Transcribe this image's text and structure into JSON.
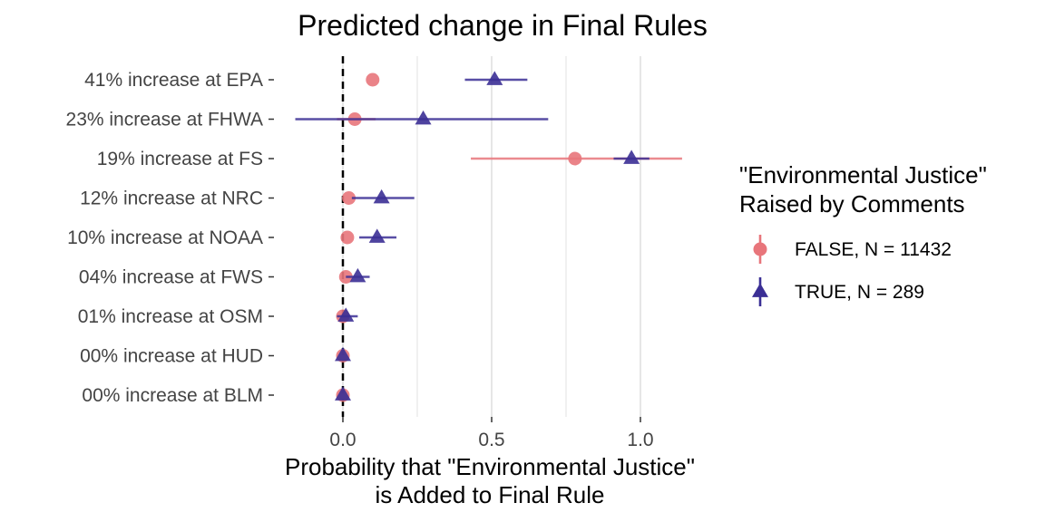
{
  "chart_data": {
    "type": "scatter",
    "title": "Predicted change in Final Rules",
    "xlabel_lines": [
      "Probability that \"Environmental Justice\"",
      "is Added to Final Rule"
    ],
    "xlim": [
      -0.24,
      1.2
    ],
    "xticks": [
      0.0,
      0.5,
      1.0
    ],
    "xtick_labels": [
      "0.0",
      "0.5",
      "1.0"
    ],
    "reference_line_x": 0,
    "grid": "vertical major and minor",
    "categories": [
      "41% increase at EPA",
      "23% increase at FHWA",
      "19% increase at FS",
      "12% increase at NRC",
      "10% increase at NOAA",
      "04% increase at FWS",
      "01% increase at OSM",
      "00% increase at HUD",
      "00% increase at BLM"
    ],
    "series": [
      {
        "name": "FALSE, N = 11432",
        "color": "#e8757b",
        "marker": "circle",
        "values": [
          0.1,
          0.04,
          0.78,
          0.02,
          0.015,
          0.01,
          0.0,
          0.0,
          0.0
        ],
        "lower": [
          0.1,
          -0.02,
          0.43,
          0.02,
          0.015,
          0.01,
          -0.01,
          0.0,
          0.0
        ],
        "upper": [
          0.1,
          0.11,
          1.14,
          0.02,
          0.015,
          0.01,
          0.01,
          0.0,
          0.0
        ]
      },
      {
        "name": "TRUE, N = 289",
        "color": "#3b2f95",
        "marker": "triangle",
        "values": [
          0.51,
          0.27,
          0.97,
          0.13,
          0.115,
          0.05,
          0.01,
          0.0,
          0.0
        ],
        "lower": [
          0.41,
          -0.16,
          0.91,
          0.03,
          0.055,
          0.01,
          -0.02,
          0.0,
          0.0
        ],
        "upper": [
          0.62,
          0.69,
          1.03,
          0.24,
          0.18,
          0.09,
          0.05,
          0.0,
          0.0
        ]
      }
    ],
    "legend": {
      "title_lines": [
        "\"Environmental Justice\"",
        "Raised by Comments"
      ],
      "placement": "right"
    }
  }
}
